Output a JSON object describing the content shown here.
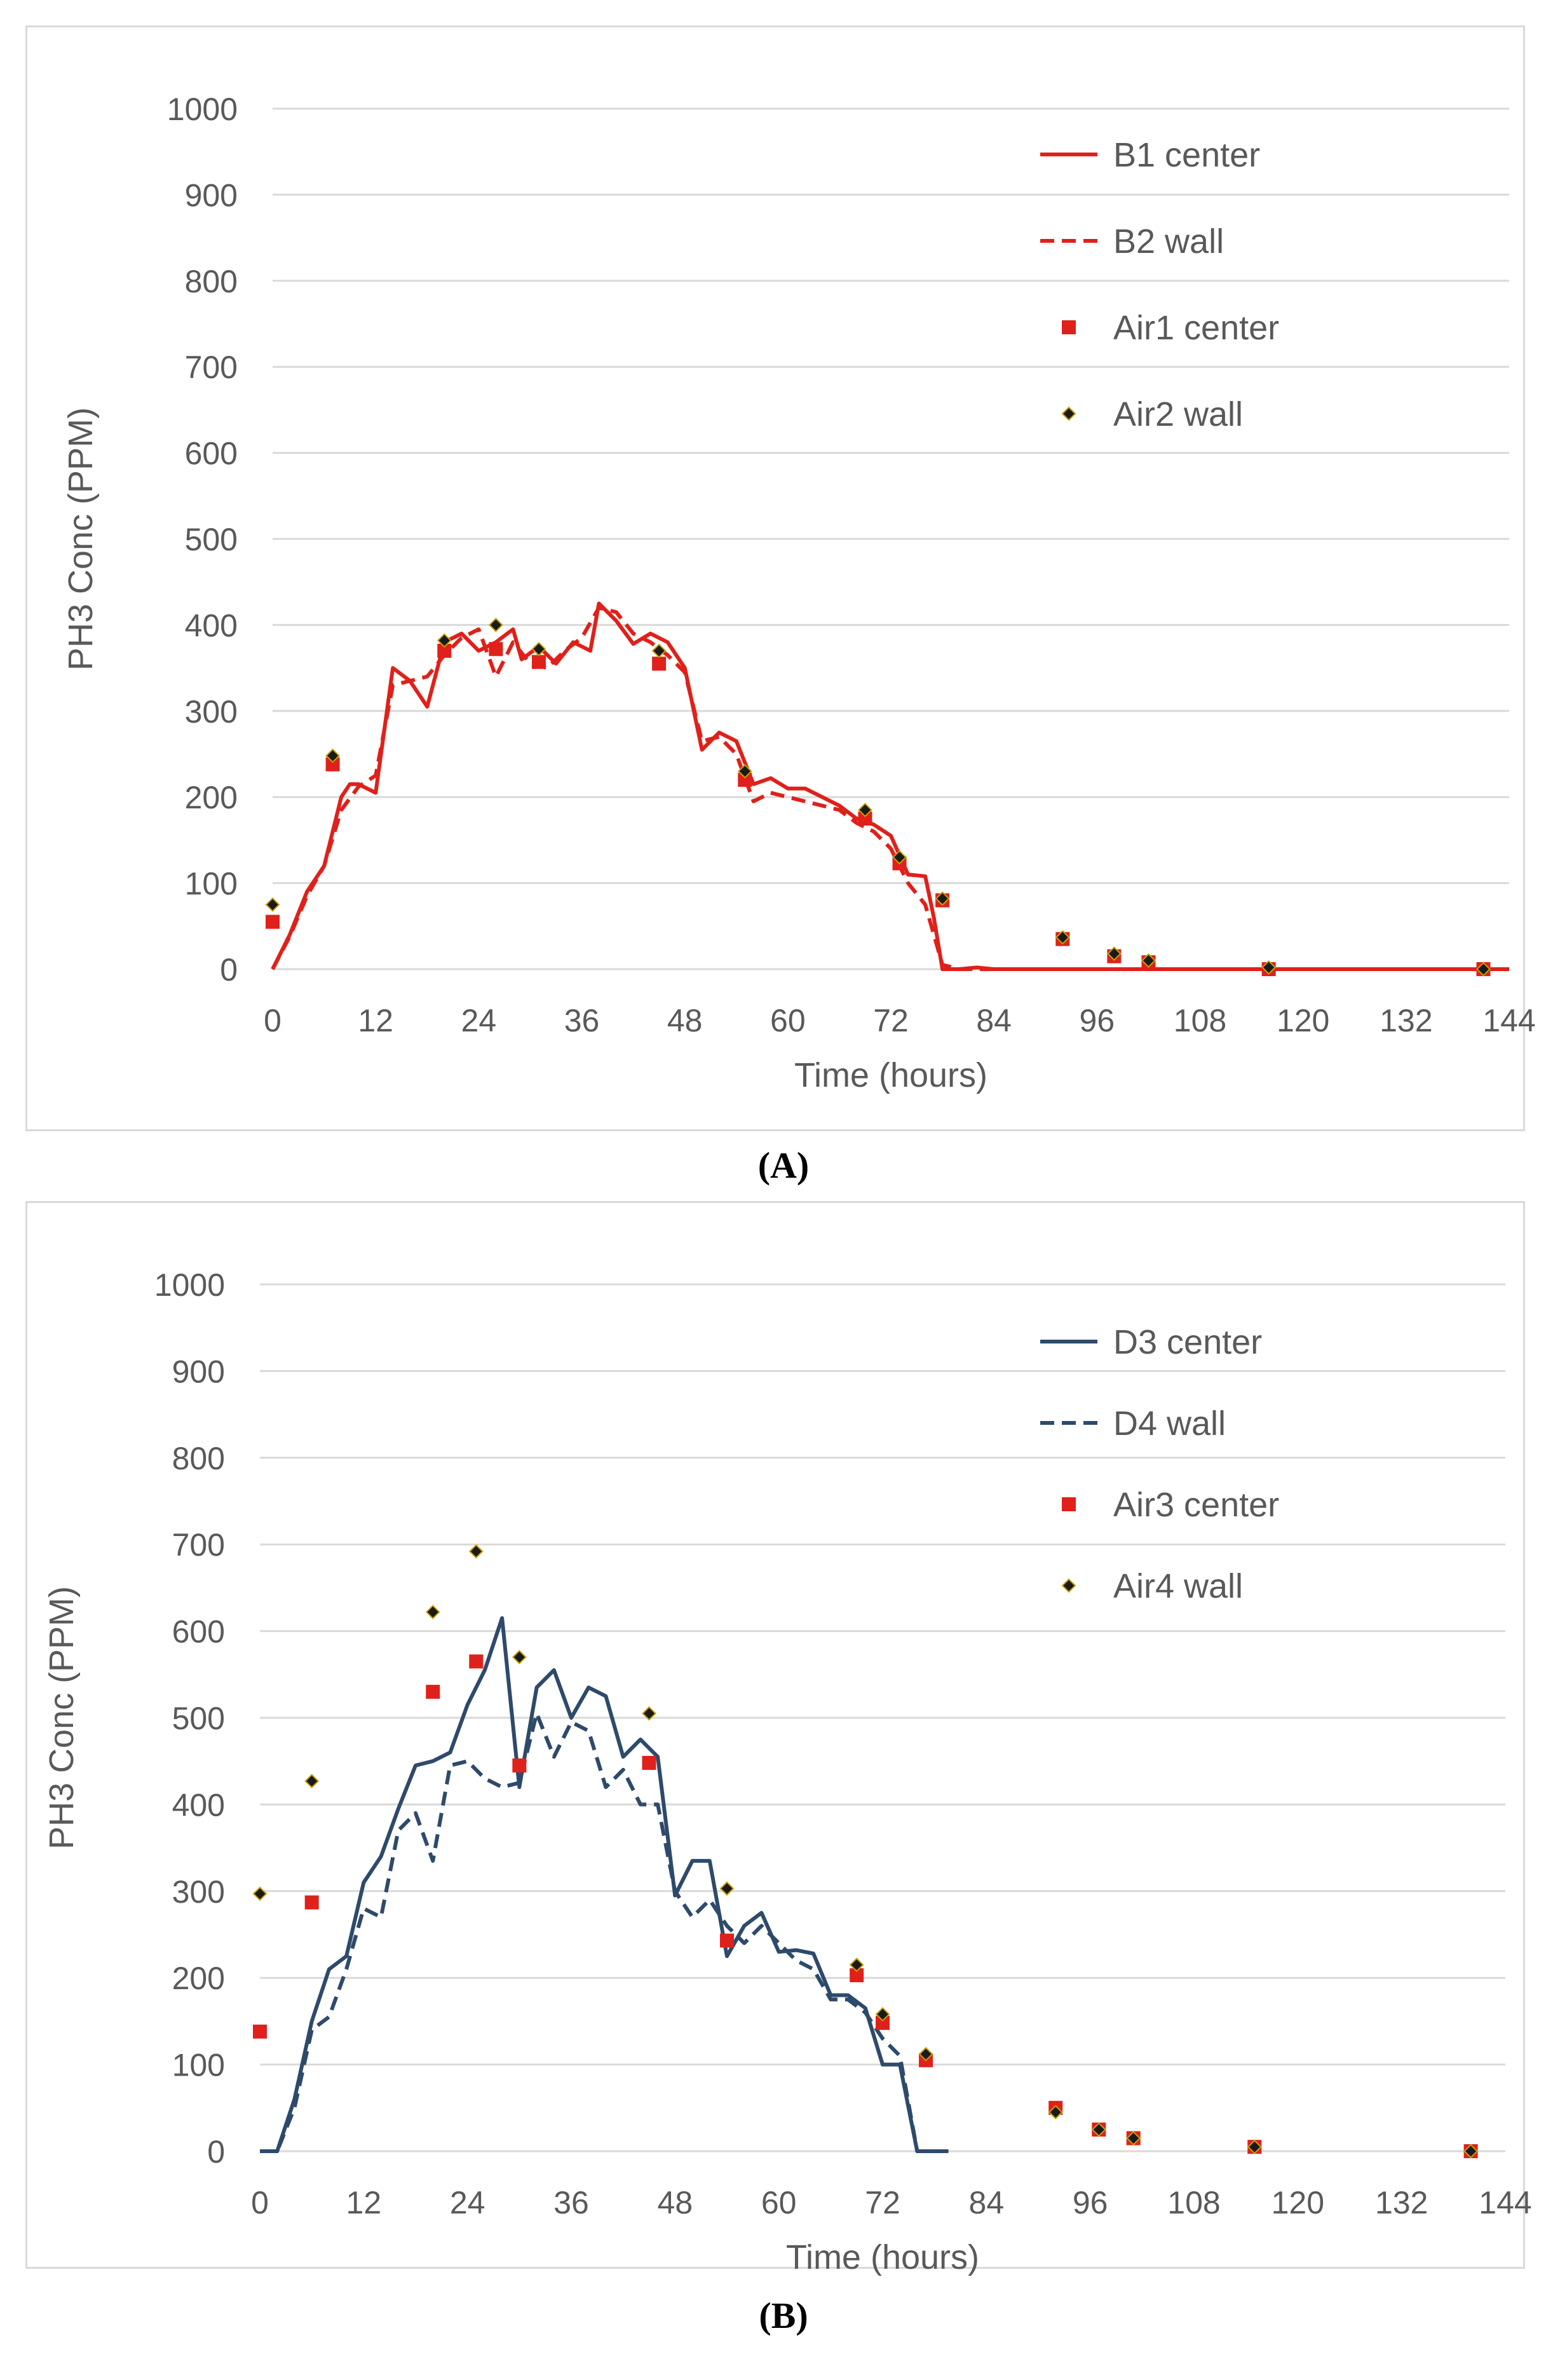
{
  "chart_data": [
    {
      "type": "line",
      "panel_label": "(A)",
      "xlabel": "Time (hours)",
      "ylabel": "PH3 Conc  (PPM)",
      "xlim": [
        0,
        144
      ],
      "ylim": [
        0,
        1000
      ],
      "xticks": [
        0,
        12,
        24,
        36,
        48,
        60,
        72,
        84,
        96,
        108,
        120,
        132,
        144
      ],
      "yticks": [
        0,
        100,
        200,
        300,
        400,
        500,
        600,
        700,
        800,
        900,
        1000
      ],
      "gridlines": "horizontal",
      "legend_position": "top-right",
      "colors": {
        "line": "#e0201a",
        "marker_square": "#e0201a",
        "marker_diamond": "#1a1a1a",
        "diamond_edge": "#c8a000",
        "grid": "#d9d9d9",
        "axis_text": "#595959"
      },
      "series": [
        {
          "name": "B1 center",
          "style": "solid",
          "x": [
            0,
            2,
            4,
            6,
            8,
            9,
            10,
            12,
            14,
            16,
            18,
            20,
            22,
            24,
            26,
            28,
            29,
            31,
            33,
            35,
            37,
            38,
            40,
            42,
            44,
            46,
            48,
            50,
            52,
            54,
            56,
            58,
            60,
            62,
            64,
            66,
            68,
            70,
            72,
            74,
            76,
            77,
            78,
            80,
            82,
            84,
            88,
            144
          ],
          "y": [
            0,
            40,
            90,
            120,
            200,
            215,
            215,
            205,
            350,
            335,
            305,
            380,
            390,
            370,
            380,
            395,
            360,
            375,
            355,
            380,
            370,
            425,
            405,
            378,
            390,
            380,
            350,
            255,
            275,
            265,
            215,
            222,
            210,
            210,
            200,
            190,
            175,
            168,
            155,
            110,
            108,
            60,
            0,
            0,
            2,
            0,
            0,
            0
          ]
        },
        {
          "name": "B2 wall",
          "style": "dashed",
          "x": [
            0,
            2,
            4,
            6,
            8,
            10,
            12,
            14,
            16,
            18,
            20,
            22,
            24,
            26,
            28,
            30,
            32,
            34,
            36,
            38,
            40,
            42,
            44,
            46,
            48,
            50,
            52,
            54,
            56,
            58,
            60,
            62,
            64,
            66,
            68,
            70,
            72,
            74,
            76,
            78,
            80,
            144
          ],
          "y": [
            0,
            38,
            85,
            120,
            185,
            212,
            225,
            330,
            335,
            340,
            365,
            385,
            395,
            340,
            380,
            355,
            350,
            370,
            385,
            420,
            415,
            390,
            380,
            365,
            345,
            265,
            270,
            250,
            195,
            205,
            200,
            195,
            190,
            185,
            170,
            160,
            140,
            100,
            75,
            5,
            0,
            0
          ]
        },
        {
          "name": "Air1 center",
          "marker": "square",
          "x": [
            0,
            7,
            20,
            26,
            31,
            45,
            55,
            69,
            73,
            78,
            92,
            98,
            102,
            116,
            141
          ],
          "y": [
            55,
            238,
            370,
            372,
            357,
            355,
            220,
            175,
            123,
            80,
            35,
            15,
            8,
            0,
            0
          ]
        },
        {
          "name": "Air2 wall",
          "marker": "diamond",
          "x": [
            0,
            7,
            20,
            26,
            31,
            45,
            55,
            69,
            73,
            78,
            92,
            98,
            102,
            116,
            141
          ],
          "y": [
            75,
            248,
            382,
            400,
            372,
            370,
            230,
            185,
            130,
            82,
            37,
            18,
            10,
            2,
            0
          ]
        }
      ]
    },
    {
      "type": "line",
      "panel_label": "(B)",
      "xlabel": "Time (hours)",
      "ylabel": "PH3 Conc  (PPM)",
      "xlim": [
        0,
        144
      ],
      "ylim": [
        0,
        1000
      ],
      "xticks": [
        0,
        12,
        24,
        36,
        48,
        60,
        72,
        84,
        96,
        108,
        120,
        132,
        144
      ],
      "yticks": [
        0,
        100,
        200,
        300,
        400,
        500,
        600,
        700,
        800,
        900,
        1000
      ],
      "gridlines": "horizontal",
      "legend_position": "top-right",
      "colors": {
        "line": "#2e4a6b",
        "marker_square": "#e0201a",
        "marker_diamond": "#1a1a1a",
        "diamond_edge": "#c8a000",
        "grid": "#d9d9d9",
        "axis_text": "#595959"
      },
      "series": [
        {
          "name": "D3 center",
          "style": "solid",
          "x": [
            0,
            2,
            4,
            6,
            8,
            10,
            12,
            14,
            16,
            18,
            20,
            22,
            24,
            26,
            28,
            30,
            32,
            34,
            36,
            38,
            40,
            42,
            44,
            46,
            48,
            50,
            52,
            54,
            56,
            58,
            60,
            62,
            64,
            66,
            68,
            70,
            72,
            74,
            76,
            78
          ],
          "y": [
            0,
            0,
            60,
            150,
            210,
            225,
            310,
            340,
            395,
            445,
            450,
            460,
            515,
            555,
            615,
            420,
            535,
            555,
            500,
            535,
            525,
            455,
            475,
            455,
            295,
            335,
            335,
            225,
            260,
            275,
            230,
            232,
            228,
            180,
            180,
            165,
            100,
            100,
            0,
            0
          ]
        },
        {
          "name": "D4 wall",
          "style": "dashed",
          "x": [
            0,
            2,
            4,
            6,
            8,
            10,
            12,
            14,
            16,
            18,
            20,
            22,
            24,
            26,
            28,
            30,
            32,
            34,
            36,
            38,
            40,
            42,
            44,
            46,
            48,
            50,
            52,
            54,
            56,
            58,
            60,
            62,
            64,
            66,
            68,
            70,
            72,
            74,
            76,
            78,
            80
          ],
          "y": [
            0,
            0,
            50,
            140,
            155,
            210,
            280,
            270,
            370,
            390,
            335,
            445,
            450,
            430,
            420,
            425,
            505,
            455,
            495,
            485,
            420,
            440,
            400,
            400,
            300,
            270,
            290,
            260,
            240,
            260,
            240,
            220,
            210,
            175,
            175,
            160,
            130,
            110,
            0,
            0,
            0
          ]
        },
        {
          "name": "Air3 center",
          "marker": "square",
          "x": [
            0,
            6,
            20,
            25,
            30,
            45,
            54,
            69,
            72,
            77,
            92,
            97,
            101,
            115,
            140
          ],
          "y": [
            138,
            287,
            530,
            565,
            445,
            448,
            243,
            203,
            148,
            105,
            50,
            25,
            15,
            5,
            0
          ]
        },
        {
          "name": "Air4 wall",
          "marker": "diamond",
          "x": [
            0,
            6,
            20,
            25,
            30,
            45,
            54,
            69,
            72,
            77,
            92,
            97,
            101,
            115,
            140
          ],
          "y": [
            297,
            427,
            622,
            692,
            570,
            505,
            303,
            215,
            158,
            112,
            45,
            25,
            15,
            5,
            0
          ]
        }
      ]
    }
  ]
}
